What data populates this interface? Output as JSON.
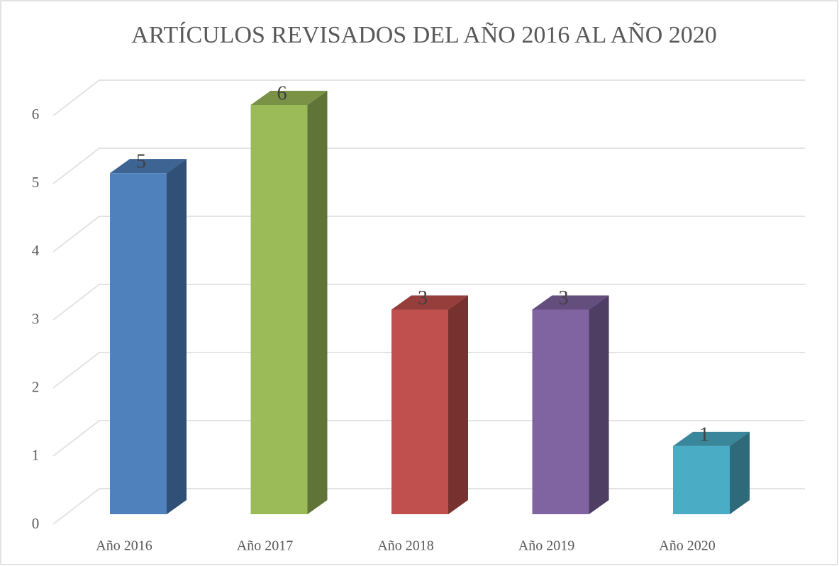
{
  "chart_data": {
    "type": "bar3d",
    "title": "ARTÍCULOS REVISADOS DEL AÑO 2016 AL AÑO 2020",
    "categories": [
      "Año 2016",
      "Año 2017",
      "Año 2018",
      "Año 2019",
      "Año 2020"
    ],
    "values": [
      5,
      6,
      3,
      3,
      1
    ],
    "colors": [
      "#4f81bd",
      "#9bbb59",
      "#c0504d",
      "#8064a2",
      "#4bacc6"
    ],
    "ylim": [
      0,
      6
    ],
    "yticks": [
      0,
      1,
      2,
      3,
      4,
      5,
      6
    ],
    "grid": true
  }
}
